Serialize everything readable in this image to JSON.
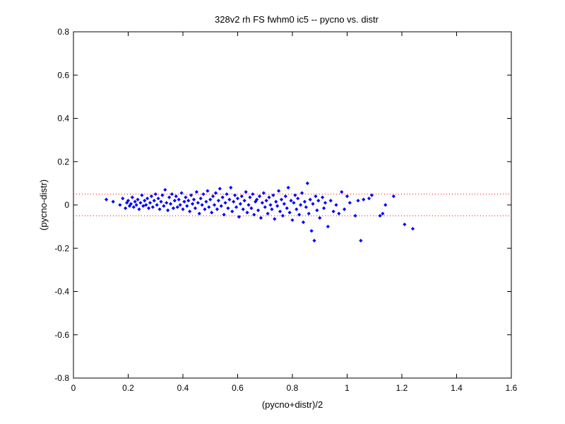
{
  "chart_data": {
    "type": "scatter",
    "title": "328v2 rh FS fwhm0 ic5 -- pycno vs. distr",
    "xlabel": "(pycno+distr)/2",
    "ylabel": "(pycno-distr)",
    "xlim": [
      0,
      1.6
    ],
    "ylim": [
      -0.8,
      0.8
    ],
    "x_ticks": [
      0,
      0.2,
      0.4,
      0.6,
      0.8,
      1,
      1.2,
      1.4,
      1.6
    ],
    "x_tick_labels": [
      "0",
      "0.2",
      "0.4",
      "0.6",
      "0.8",
      "1",
      "1.2",
      "1.4",
      "1.6"
    ],
    "y_ticks": [
      -0.8,
      -0.6,
      -0.4,
      -0.2,
      0,
      0.2,
      0.4,
      0.6,
      0.8
    ],
    "y_tick_labels": [
      "-0.8",
      "-0.6",
      "-0.4",
      "-0.2",
      "0",
      "0.2",
      "0.4",
      "0.6",
      "0.8"
    ],
    "grid": false,
    "reference_lines": [
      {
        "y": 0.05,
        "style": "dotted",
        "color": "#ff0000"
      },
      {
        "y": -0.05,
        "style": "dotted",
        "color": "#ff0000"
      }
    ],
    "marker_color": "#0000ff",
    "series": [
      {
        "marker": "diamond",
        "points": [
          [
            0.12,
            0.025
          ],
          [
            0.145,
            0.015
          ],
          [
            0.17,
            0.0
          ],
          [
            0.18,
            0.03
          ],
          [
            0.19,
            -0.015
          ],
          [
            0.195,
            0.01
          ],
          [
            0.2,
            0.02
          ],
          [
            0.205,
            -0.005
          ],
          [
            0.21,
            0.005
          ],
          [
            0.215,
            0.035
          ],
          [
            0.22,
            -0.01
          ],
          [
            0.225,
            0.015
          ],
          [
            0.23,
            0.0
          ],
          [
            0.235,
            0.025
          ],
          [
            0.24,
            -0.02
          ],
          [
            0.245,
            0.01
          ],
          [
            0.25,
            0.045
          ],
          [
            0.255,
            -0.005
          ],
          [
            0.26,
            0.02
          ],
          [
            0.265,
            0.0
          ],
          [
            0.27,
            0.03
          ],
          [
            0.275,
            -0.015
          ],
          [
            0.28,
            0.01
          ],
          [
            0.285,
            0.04
          ],
          [
            0.29,
            -0.01
          ],
          [
            0.295,
            0.02
          ],
          [
            0.3,
            0.05
          ],
          [
            0.305,
            0.0
          ],
          [
            0.31,
            0.03
          ],
          [
            0.315,
            -0.02
          ],
          [
            0.32,
            0.015
          ],
          [
            0.325,
            0.045
          ],
          [
            0.33,
            -0.005
          ],
          [
            0.335,
            0.07
          ],
          [
            0.34,
            0.01
          ],
          [
            0.345,
            -0.025
          ],
          [
            0.35,
            0.035
          ],
          [
            0.355,
            0.005
          ],
          [
            0.36,
            0.05
          ],
          [
            0.365,
            -0.015
          ],
          [
            0.37,
            0.02
          ],
          [
            0.375,
            0.04
          ],
          [
            0.38,
            -0.01
          ],
          [
            0.385,
            0.025
          ],
          [
            0.39,
            0.0
          ],
          [
            0.395,
            0.055
          ],
          [
            0.4,
            -0.02
          ],
          [
            0.405,
            0.015
          ],
          [
            0.41,
            0.035
          ],
          [
            0.415,
            -0.005
          ],
          [
            0.42,
            0.02
          ],
          [
            0.425,
            -0.03
          ],
          [
            0.43,
            0.045
          ],
          [
            0.435,
            0.005
          ],
          [
            0.44,
            0.025
          ],
          [
            0.445,
            -0.015
          ],
          [
            0.45,
            0.06
          ],
          [
            0.455,
            0.01
          ],
          [
            0.46,
            -0.04
          ],
          [
            0.465,
            0.03
          ],
          [
            0.47,
            0.0
          ],
          [
            0.475,
            0.05
          ],
          [
            0.48,
            -0.02
          ],
          [
            0.485,
            0.015
          ],
          [
            0.49,
            0.065
          ],
          [
            0.495,
            -0.01
          ],
          [
            0.5,
            0.025
          ],
          [
            0.505,
            -0.035
          ],
          [
            0.51,
            0.04
          ],
          [
            0.515,
            0.0
          ],
          [
            0.52,
            0.055
          ],
          [
            0.525,
            -0.02
          ],
          [
            0.53,
            0.02
          ],
          [
            0.535,
            0.075
          ],
          [
            0.54,
            -0.005
          ],
          [
            0.545,
            0.035
          ],
          [
            0.55,
            -0.045
          ],
          [
            0.555,
            0.01
          ],
          [
            0.56,
            0.05
          ],
          [
            0.565,
            -0.015
          ],
          [
            0.57,
            0.025
          ],
          [
            0.575,
            0.08
          ],
          [
            0.58,
            -0.03
          ],
          [
            0.585,
            0.015
          ],
          [
            0.59,
            0.045
          ],
          [
            0.595,
            -0.01
          ],
          [
            0.6,
            0.03
          ],
          [
            0.605,
            -0.055
          ],
          [
            0.61,
            0.005
          ],
          [
            0.615,
            0.04
          ],
          [
            0.62,
            -0.02
          ],
          [
            0.625,
            0.02
          ],
          [
            0.63,
            0.06
          ],
          [
            0.635,
            -0.035
          ],
          [
            0.64,
            0.0
          ],
          [
            0.645,
            0.035
          ],
          [
            0.65,
            -0.015
          ],
          [
            0.655,
            0.05
          ],
          [
            0.66,
            -0.045
          ],
          [
            0.665,
            0.015
          ],
          [
            0.67,
            0.025
          ],
          [
            0.675,
            -0.025
          ],
          [
            0.68,
            0.04
          ],
          [
            0.685,
            -0.06
          ],
          [
            0.69,
            0.01
          ],
          [
            0.695,
            0.055
          ],
          [
            0.7,
            -0.01
          ],
          [
            0.705,
            0.02
          ],
          [
            0.71,
            -0.04
          ],
          [
            0.715,
            0.035
          ],
          [
            0.72,
            0.0
          ],
          [
            0.725,
            -0.02
          ],
          [
            0.73,
            0.045
          ],
          [
            0.735,
            -0.065
          ],
          [
            0.74,
            0.015
          ],
          [
            0.745,
            -0.005
          ],
          [
            0.75,
            0.065
          ],
          [
            0.755,
            -0.03
          ],
          [
            0.76,
            0.025
          ],
          [
            0.765,
            -0.05
          ],
          [
            0.77,
            0.005
          ],
          [
            0.775,
            0.04
          ],
          [
            0.78,
            -0.015
          ],
          [
            0.785,
            0.08
          ],
          [
            0.79,
            -0.035
          ],
          [
            0.795,
            0.02
          ],
          [
            0.8,
            -0.07
          ],
          [
            0.805,
            0.01
          ],
          [
            0.81,
            0.045
          ],
          [
            0.815,
            -0.02
          ],
          [
            0.82,
            0.03
          ],
          [
            0.825,
            -0.045
          ],
          [
            0.83,
            0.0
          ],
          [
            0.835,
            0.055
          ],
          [
            0.84,
            -0.08
          ],
          [
            0.845,
            0.015
          ],
          [
            0.85,
            -0.01
          ],
          [
            0.855,
            0.1
          ],
          [
            0.86,
            -0.04
          ],
          [
            0.865,
            0.025
          ],
          [
            0.87,
            -0.12
          ],
          [
            0.875,
            0.005
          ],
          [
            0.88,
            -0.165
          ],
          [
            0.885,
            0.04
          ],
          [
            0.89,
            -0.025
          ],
          [
            0.895,
            0.02
          ],
          [
            0.9,
            -0.06
          ],
          [
            0.91,
            0.035
          ],
          [
            0.915,
            -0.015
          ],
          [
            0.92,
            0.01
          ],
          [
            0.93,
            -0.1
          ],
          [
            0.94,
            0.02
          ],
          [
            0.95,
            -0.03
          ],
          [
            0.96,
            0.0
          ],
          [
            0.97,
            -0.04
          ],
          [
            0.98,
            0.06
          ],
          [
            0.99,
            -0.02
          ],
          [
            1.0,
            0.04
          ],
          [
            1.01,
            0.01
          ],
          [
            1.03,
            -0.05
          ],
          [
            1.04,
            0.02
          ],
          [
            1.05,
            -0.165
          ],
          [
            1.06,
            0.025
          ],
          [
            1.08,
            0.03
          ],
          [
            1.09,
            0.045
          ],
          [
            1.12,
            -0.05
          ],
          [
            1.13,
            -0.04
          ],
          [
            1.14,
            0.0
          ],
          [
            1.17,
            0.04
          ],
          [
            1.21,
            -0.09
          ],
          [
            1.24,
            -0.11
          ]
        ]
      }
    ]
  }
}
